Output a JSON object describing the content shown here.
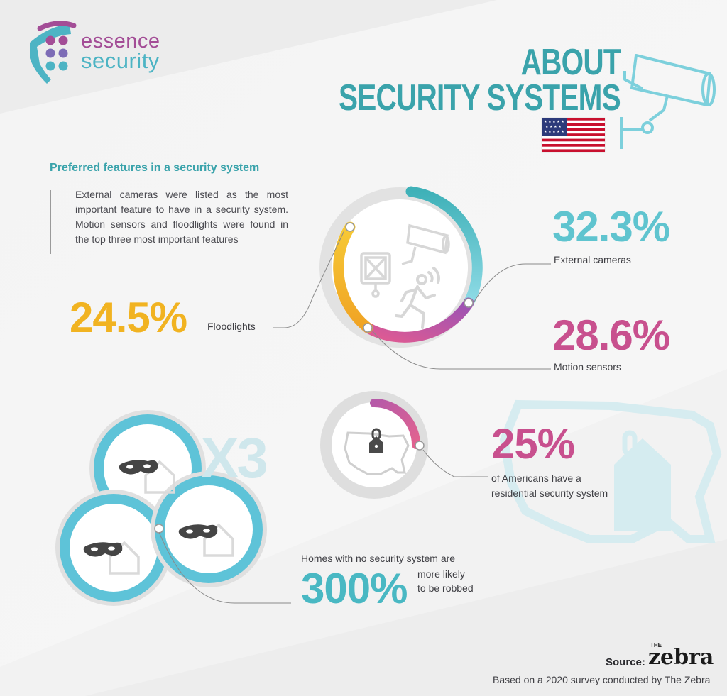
{
  "brand": {
    "line1": "essence",
    "line2": "security"
  },
  "title": {
    "line1": "ABOUT",
    "line2": "SECURITY SYSTEMS"
  },
  "features": {
    "heading": "Preferred features in a security system",
    "description": "External cameras were listed as the most important feature to have in a security system. Motion sensors  and floodlights were found in the top three most important features",
    "items": [
      {
        "value": "32.3%",
        "label": "External cameras",
        "color": "#5fc4cf",
        "share": 0.323
      },
      {
        "value": "28.6%",
        "label": "Motion sensors",
        "color": "#c8508e",
        "share": 0.286
      },
      {
        "value": "24.5%",
        "label": "Floodlights",
        "color": "#f1b321",
        "share": 0.245
      }
    ]
  },
  "residential": {
    "value": "25%",
    "label_line1": "of Americans have a",
    "label_line2": "residential security system",
    "share": 0.25
  },
  "robbery": {
    "multiplier": "X3",
    "value": "300%",
    "label_line1": "Homes with no security system are",
    "label_line2": "more likely",
    "label_line3": "to be robbed"
  },
  "source": {
    "label": "Source:",
    "brand_small": "THE",
    "brand": "zebra",
    "note": "Based on a 2020 survey conducted by The Zebra"
  },
  "colors": {
    "teal": "#3aa3ab",
    "cyan": "#5fc4cf",
    "magenta": "#c8508e",
    "yellow": "#f1b321",
    "purple": "#a34d96"
  },
  "icons": [
    "shield-logo-icon",
    "security-camera-icon",
    "us-flag-icon",
    "floodlight-icon",
    "running-person-icon",
    "padlock-house-icon",
    "us-map-icon",
    "burglar-mask-icon"
  ]
}
